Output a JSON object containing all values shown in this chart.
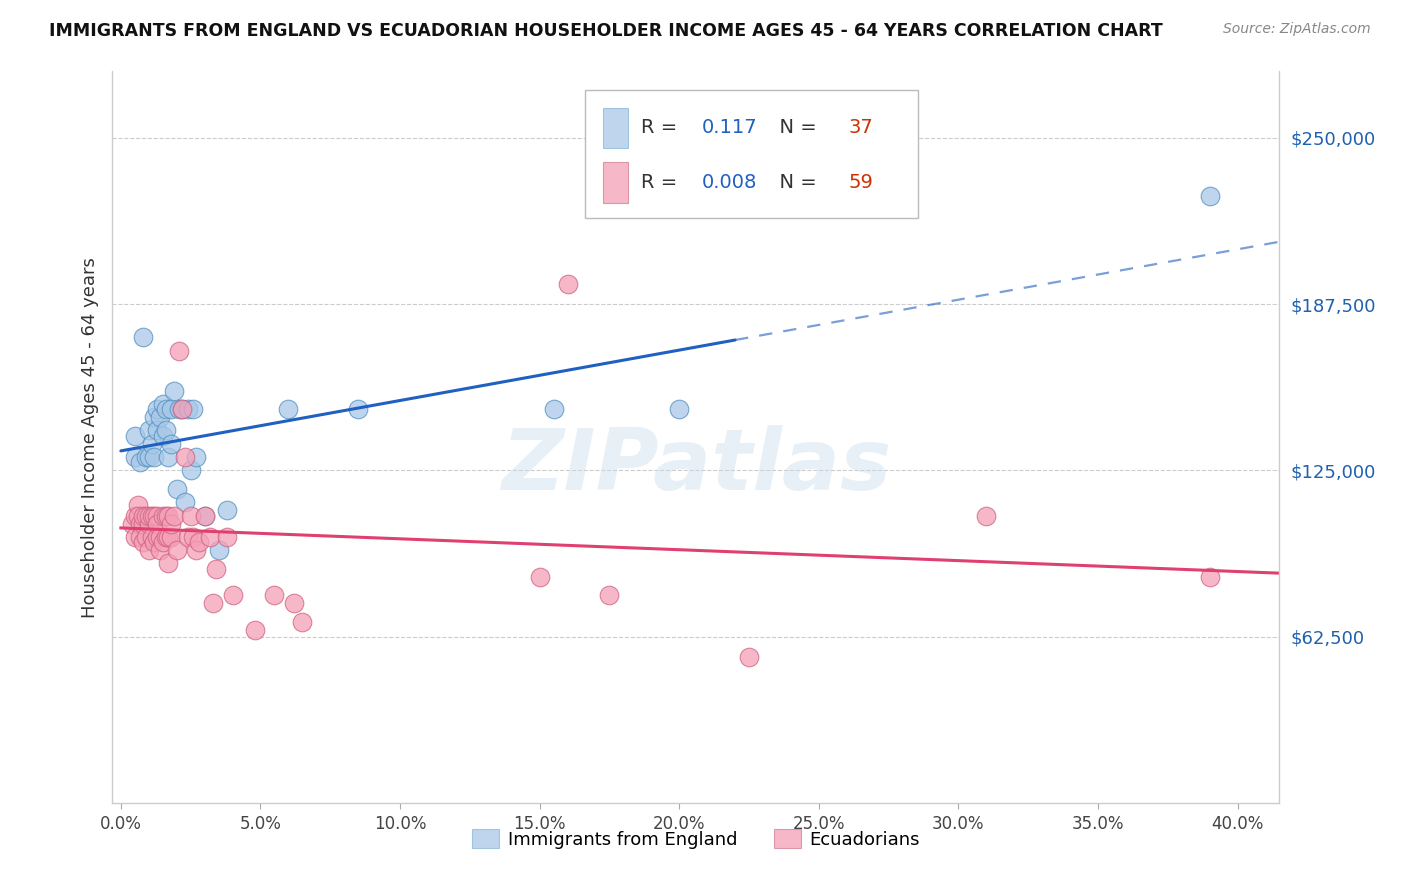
{
  "title": "IMMIGRANTS FROM ENGLAND VS ECUADORIAN HOUSEHOLDER INCOME AGES 45 - 64 YEARS CORRELATION CHART",
  "source": "Source: ZipAtlas.com",
  "ylabel": "Householder Income Ages 45 - 64 years",
  "ytick_labels": [
    "$62,500",
    "$125,000",
    "$187,500",
    "$250,000"
  ],
  "ytick_vals": [
    62500,
    125000,
    187500,
    250000
  ],
  "ylim": [
    0,
    275000
  ],
  "xlim": [
    -0.003,
    0.415
  ],
  "xtick_vals": [
    0.0,
    0.05,
    0.1,
    0.15,
    0.2,
    0.25,
    0.3,
    0.35,
    0.4
  ],
  "xtick_labels": [
    "0.0%",
    "5.0%",
    "10.0%",
    "15.0%",
    "20.0%",
    "25.0%",
    "30.0%",
    "35.0%",
    "40.0%"
  ],
  "england_R": 0.117,
  "england_N": 37,
  "ecuador_R": 0.008,
  "ecuador_N": 59,
  "england_color": "#a8c8e8",
  "ecuador_color": "#f4a0b8",
  "england_line_color": "#2060c0",
  "ecuador_line_color": "#e04070",
  "watermark": "ZIPatlas",
  "england_x": [
    0.005,
    0.005,
    0.007,
    0.008,
    0.009,
    0.01,
    0.01,
    0.011,
    0.012,
    0.012,
    0.013,
    0.013,
    0.014,
    0.015,
    0.015,
    0.016,
    0.016,
    0.017,
    0.018,
    0.018,
    0.019,
    0.02,
    0.021,
    0.022,
    0.023,
    0.024,
    0.025,
    0.026,
    0.027,
    0.03,
    0.035,
    0.038,
    0.06,
    0.085,
    0.155,
    0.2,
    0.39
  ],
  "england_y": [
    130000,
    138000,
    128000,
    175000,
    130000,
    130000,
    140000,
    135000,
    145000,
    130000,
    148000,
    140000,
    145000,
    150000,
    138000,
    148000,
    140000,
    130000,
    148000,
    135000,
    155000,
    118000,
    148000,
    148000,
    113000,
    148000,
    125000,
    148000,
    130000,
    108000,
    95000,
    110000,
    148000,
    148000,
    148000,
    148000,
    228000
  ],
  "ecuador_x": [
    0.004,
    0.005,
    0.005,
    0.006,
    0.006,
    0.007,
    0.007,
    0.008,
    0.008,
    0.008,
    0.009,
    0.009,
    0.01,
    0.01,
    0.01,
    0.011,
    0.011,
    0.012,
    0.012,
    0.013,
    0.013,
    0.013,
    0.014,
    0.014,
    0.015,
    0.015,
    0.016,
    0.016,
    0.017,
    0.017,
    0.017,
    0.018,
    0.018,
    0.019,
    0.02,
    0.021,
    0.022,
    0.023,
    0.024,
    0.025,
    0.026,
    0.027,
    0.028,
    0.03,
    0.032,
    0.033,
    0.034,
    0.038,
    0.04,
    0.048,
    0.055,
    0.062,
    0.065,
    0.15,
    0.16,
    0.175,
    0.225,
    0.31,
    0.39
  ],
  "ecuador_y": [
    105000,
    100000,
    108000,
    112000,
    108000,
    105000,
    100000,
    98000,
    105000,
    108000,
    100000,
    108000,
    105000,
    95000,
    108000,
    100000,
    108000,
    108000,
    98000,
    108000,
    100000,
    105000,
    100000,
    95000,
    98000,
    108000,
    100000,
    108000,
    90000,
    100000,
    108000,
    100000,
    105000,
    108000,
    95000,
    170000,
    148000,
    130000,
    100000,
    108000,
    100000,
    95000,
    98000,
    108000,
    100000,
    75000,
    88000,
    100000,
    78000,
    65000,
    78000,
    75000,
    68000,
    85000,
    195000,
    78000,
    55000,
    108000,
    85000
  ]
}
